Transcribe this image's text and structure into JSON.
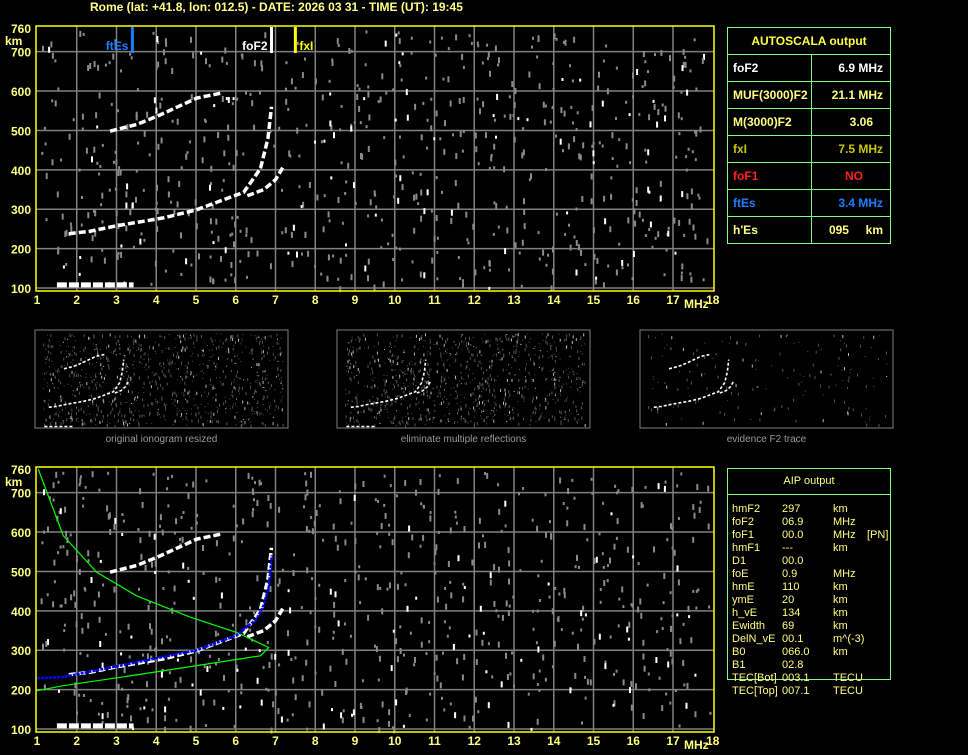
{
  "header": {
    "title": "Rome (lat: +41.8, lon: 012.5) - DATE: 2026 03 31 - TIME (UT): 19:45"
  },
  "markers": [
    {
      "label": "ftEs",
      "freq": 3.4,
      "color": "#1a7fff"
    },
    {
      "label": "foF2",
      "freq": 6.9,
      "color": "#ffffff"
    },
    {
      "label": "fxI",
      "freq": 7.5,
      "color": "#ffff00"
    }
  ],
  "autoscala": {
    "title": "AUTOSCALA output",
    "rows": [
      {
        "label": "foF2",
        "value": "6.9 MHz",
        "color": "#ffffff"
      },
      {
        "label": "MUF(3000)F2",
        "value": "21.1 MHz",
        "color": "#ffff80"
      },
      {
        "label": "M(3000)F2",
        "value": "3.06   ",
        "color": "#ffff80"
      },
      {
        "label": "fxI",
        "value": "7.5 MHz",
        "color": "#c8c800"
      },
      {
        "label": "foF1",
        "value": "NO      ",
        "color": "#ff2020"
      },
      {
        "label": "ftEs",
        "value": "3.4 MHz",
        "color": "#1a7fff"
      },
      {
        "label": "h'Es",
        "value": "095     km",
        "color": "#ffff80"
      }
    ]
  },
  "aip": {
    "title": "AIP output",
    "rows": [
      {
        "name": "hmF2",
        "value": "297",
        "unit": "km",
        "note": ""
      },
      {
        "name": "foF2",
        "value": "06.9",
        "unit": "MHz",
        "note": ""
      },
      {
        "name": "foF1",
        "value": "00.0",
        "unit": "MHz",
        "note": "[PN]"
      },
      {
        "name": "hmF1",
        "value": "---",
        "unit": "km",
        "note": ""
      },
      {
        "name": "D1",
        "value": "00.0",
        "unit": "",
        "note": ""
      },
      {
        "name": "foE",
        "value": "0.9",
        "unit": "MHz",
        "note": ""
      },
      {
        "name": "hmE",
        "value": "110",
        "unit": "km",
        "note": ""
      },
      {
        "name": "ymE",
        "value": "20",
        "unit": "km",
        "note": ""
      },
      {
        "name": "h_vE",
        "value": "134",
        "unit": "km",
        "note": ""
      },
      {
        "name": "Ewidth",
        "value": "69",
        "unit": "km",
        "note": ""
      },
      {
        "name": "DelN_vE",
        "value": "00.1",
        "unit": "m^(-3)",
        "note": ""
      },
      {
        "name": "B0",
        "value": "066.0",
        "unit": "km",
        "note": ""
      },
      {
        "name": "B1",
        "value": "02.8",
        "unit": "",
        "note": ""
      },
      {
        "name": "TEC[Bot]",
        "value": "003.1",
        "unit": "TECU",
        "note": ""
      },
      {
        "name": "TEC[Top]",
        "value": "007.1",
        "unit": "TECU",
        "note": ""
      }
    ]
  },
  "thumbnails": [
    {
      "caption": "original ionogram resized"
    },
    {
      "caption": "eliminate multiple reflections"
    },
    {
      "caption": "evidence F2 trace"
    }
  ],
  "colors": {
    "frame": "#ffff00",
    "grid": "#808080",
    "axis_text": "#ffff80",
    "box_border": "#80ff80",
    "profile": "#00ff00",
    "fitted_trace": "#0000ff",
    "echo": "#ffffff"
  },
  "chart_data": [
    {
      "type": "scatter",
      "xlabel": "MHz",
      "ylabel": "km",
      "xlim": [
        1,
        18
      ],
      "ylim": [
        100,
        760
      ],
      "xticks": [
        "1",
        "2",
        "3",
        "4",
        "5",
        "6",
        "7",
        "8",
        "9",
        "10",
        "11",
        "12",
        "13",
        "14",
        "15",
        "16",
        "17",
        "18"
      ],
      "yticks": [
        "100",
        "200",
        "300",
        "400",
        "500",
        "600",
        "700",
        "760"
      ],
      "grid": true,
      "series": [
        {
          "kind": "echo-o-trace",
          "x": [
            1.8,
            2.33,
            3.0,
            4.18,
            5.0,
            5.69,
            6.2,
            6.62,
            6.81,
            6.9
          ],
          "y": [
            238,
            244,
            258,
            278,
            298,
            324,
            343,
            403,
            479,
            560
          ]
        },
        {
          "kind": "echo-x-trace",
          "x": [
            6.29,
            6.71,
            7.0,
            7.21
          ],
          "y": [
            334,
            350,
            375,
            410
          ]
        },
        {
          "kind": "echo-second-hop",
          "x": [
            2.84,
            3.5,
            4.02,
            5.02,
            5.65
          ],
          "y": [
            498,
            515,
            536,
            582,
            595
          ]
        },
        {
          "kind": "echo-Es",
          "x": [
            1.5,
            3.43
          ],
          "y": [
            108,
            108
          ]
        }
      ]
    },
    {
      "type": "line",
      "xlabel": "MHz",
      "ylabel": "km",
      "xlim": [
        1,
        18
      ],
      "ylim": [
        100,
        760
      ],
      "xticks": [
        "1",
        "2",
        "3",
        "4",
        "5",
        "6",
        "7",
        "8",
        "9",
        "10",
        "11",
        "12",
        "13",
        "14",
        "15",
        "16",
        "17",
        "18"
      ],
      "yticks": [
        "100",
        "200",
        "300",
        "400",
        "500",
        "600",
        "700",
        "760"
      ],
      "grid": true,
      "series": [
        {
          "kind": "echo-o-trace",
          "x": [
            1.8,
            2.33,
            3.0,
            4.18,
            5.0,
            5.69,
            6.2,
            6.62,
            6.81,
            6.9
          ],
          "y": [
            238,
            244,
            258,
            278,
            298,
            324,
            343,
            403,
            479,
            560
          ]
        },
        {
          "kind": "echo-x-trace",
          "x": [
            6.29,
            6.71,
            7.0,
            7.21
          ],
          "y": [
            334,
            350,
            375,
            410
          ]
        },
        {
          "kind": "echo-second-hop",
          "x": [
            2.84,
            3.5,
            4.02,
            5.02,
            5.65
          ],
          "y": [
            498,
            515,
            536,
            582,
            595
          ]
        },
        {
          "kind": "echo-Es",
          "x": [
            1.5,
            3.43
          ],
          "y": [
            108,
            108
          ]
        },
        {
          "kind": "profile",
          "x": [
            0.99,
            1.66,
            3.34,
            5.02,
            6.62,
            6.83,
            6.03,
            4.85,
            3.51,
            2.5,
            1.66,
            1.03
          ],
          "y": [
            197,
            210,
            235,
            261,
            286,
            307,
            345,
            384,
            438,
            498,
            591,
            760
          ]
        },
        {
          "kind": "fitted-trace",
          "x": [
            1.0,
            1.66,
            3.34,
            5.02,
            6.03,
            6.53,
            6.7,
            6.83,
            6.91
          ],
          "y": [
            229,
            232,
            266,
            300,
            338,
            380,
            414,
            461,
            541
          ]
        }
      ]
    }
  ]
}
